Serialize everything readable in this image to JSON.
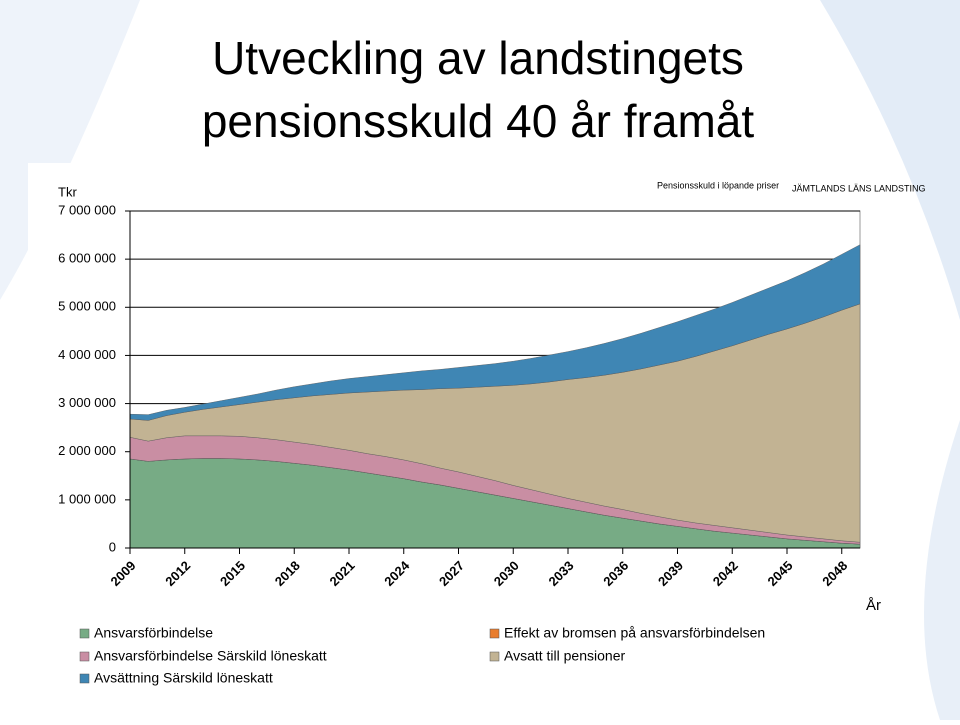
{
  "chart_data": {
    "type": "stacked-area",
    "title": [
      "Utveckling av landstingets",
      "pensionsskuld 40 år framåt"
    ],
    "ylabel": "Tkr",
    "xlabel": "År",
    "annotations": [
      "Pensionsskuld i löpande priser",
      "JÄMTLANDS LÄNS LANDSTING"
    ],
    "x": [
      2009,
      2010,
      2011,
      2012,
      2013,
      2014,
      2015,
      2016,
      2017,
      2018,
      2019,
      2020,
      2021,
      2022,
      2023,
      2024,
      2025,
      2026,
      2027,
      2028,
      2029,
      2030,
      2031,
      2032,
      2033,
      2034,
      2035,
      2036,
      2037,
      2038,
      2039,
      2040,
      2041,
      2042,
      2043,
      2044,
      2045,
      2046,
      2047,
      2048,
      2049
    ],
    "xlim": [
      2009,
      2049
    ],
    "xticks": [
      2009,
      2012,
      2015,
      2018,
      2021,
      2024,
      2027,
      2030,
      2033,
      2036,
      2039,
      2042,
      2045,
      2048
    ],
    "ylim": [
      0,
      7000000
    ],
    "yticks": [
      0,
      {
        "value": 1000000,
        "label": "1 000 000"
      },
      {
        "value": 2000000,
        "label": "2 000 000"
      },
      {
        "value": 3000000,
        "label": "3 000 000"
      },
      {
        "value": 4000000,
        "label": "4 000 000"
      },
      {
        "value": 5000000,
        "label": "5 000 000"
      },
      {
        "value": 6000000,
        "label": "6 000 000"
      },
      {
        "value": 7000000,
        "label": "7 000 000"
      }
    ],
    "grid": true,
    "series": [
      {
        "name": "Ansvarsförbindelse",
        "color": "#77ab85",
        "values": [
          1850000,
          1800000,
          1830000,
          1850000,
          1860000,
          1860000,
          1850000,
          1830000,
          1800000,
          1760000,
          1720000,
          1670000,
          1620000,
          1560000,
          1500000,
          1440000,
          1370000,
          1310000,
          1240000,
          1170000,
          1100000,
          1030000,
          960000,
          890000,
          820000,
          750000,
          680000,
          620000,
          560000,
          500000,
          450000,
          400000,
          350000,
          310000,
          270000,
          230000,
          190000,
          160000,
          130000,
          100000,
          80000
        ]
      },
      {
        "name": "Effekt av bromsen på ansvarsförbindelsen",
        "color": "#e87d2e",
        "values": [
          0,
          0,
          0,
          0,
          0,
          0,
          0,
          0,
          0,
          0,
          0,
          0,
          0,
          0,
          0,
          0,
          0,
          0,
          0,
          0,
          0,
          0,
          0,
          0,
          0,
          0,
          0,
          0,
          0,
          0,
          0,
          0,
          0,
          0,
          0,
          0,
          0,
          0,
          0,
          0,
          0
        ]
      },
      {
        "name": "Ansvarsförbindelse Särskild löneskatt",
        "color": "#c98ea3",
        "values": [
          450000,
          420000,
          460000,
          480000,
          470000,
          470000,
          470000,
          460000,
          450000,
          440000,
          430000,
          420000,
          410000,
          400000,
          400000,
          390000,
          380000,
          350000,
          340000,
          320000,
          300000,
          270000,
          250000,
          230000,
          210000,
          200000,
          190000,
          180000,
          160000,
          150000,
          130000,
          120000,
          120000,
          110000,
          100000,
          90000,
          80000,
          70000,
          60000,
          50000,
          40000
        ]
      },
      {
        "name": "Avsatt till pensioner",
        "color": "#c2b393",
        "values": [
          380000,
          430000,
          460000,
          490000,
          550000,
          600000,
          660000,
          740000,
          830000,
          920000,
          1010000,
          1100000,
          1190000,
          1280000,
          1360000,
          1450000,
          1540000,
          1650000,
          1740000,
          1850000,
          1960000,
          2080000,
          2200000,
          2330000,
          2470000,
          2590000,
          2720000,
          2850000,
          3000000,
          3150000,
          3300000,
          3460000,
          3620000,
          3780000,
          3950000,
          4120000,
          4280000,
          4440000,
          4610000,
          4790000,
          4950000
        ]
      },
      {
        "name": "Avsättning Särskild löneskatt",
        "color": "#3f86b4",
        "values": [
          100000,
          120000,
          110000,
          100000,
          110000,
          130000,
          150000,
          170000,
          200000,
          230000,
          250000,
          280000,
          300000,
          320000,
          340000,
          360000,
          390000,
          400000,
          430000,
          450000,
          470000,
          500000,
          530000,
          560000,
          580000,
          620000,
          660000,
          700000,
          740000,
          780000,
          820000,
          850000,
          870000,
          900000,
          930000,
          960000,
          1000000,
          1050000,
          1100000,
          1160000,
          1230000
        ]
      }
    ]
  }
}
